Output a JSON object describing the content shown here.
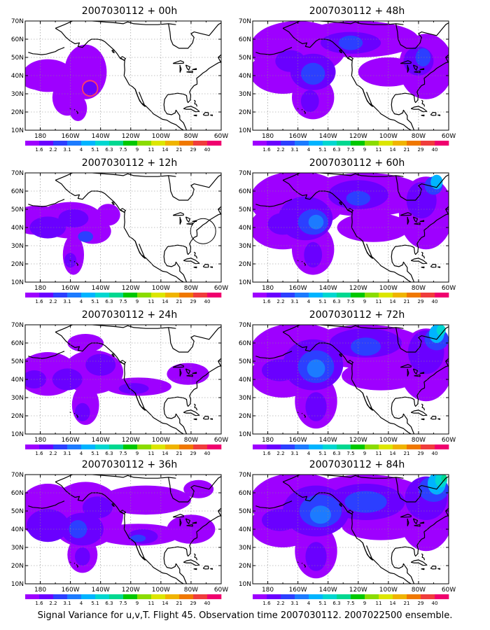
{
  "footer": "Signal Variance for u,v,T. Flight 45. Observation time 2007030112. 2007022500 ensemble.",
  "lat_labels": [
    "70N",
    "60N",
    "50N",
    "40N",
    "30N",
    "20N",
    "10N"
  ],
  "lon_labels": [
    "180",
    "160W",
    "140W",
    "120W",
    "100W",
    "80W",
    "60W"
  ],
  "colorbar": {
    "labels": [
      "1.6",
      "2.2",
      "3.1",
      "4",
      "5.1",
      "6.3",
      "7.5",
      "9",
      "11",
      "14",
      "21",
      "29",
      "40"
    ],
    "colors": [
      "#9e00ff",
      "#6a00ff",
      "#2c3fff",
      "#1c7bff",
      "#00b4ff",
      "#00d7d0",
      "#00d890",
      "#00c800",
      "#8adc00",
      "#dce600",
      "#f0b400",
      "#f07800",
      "#f03c3c",
      "#f0006e"
    ]
  },
  "panels": [
    {
      "title": "2007030112 + 00h",
      "intensity": 0
    },
    {
      "title": "2007030112 + 12h",
      "intensity": 1
    },
    {
      "title": "2007030112 + 24h",
      "intensity": 2
    },
    {
      "title": "2007030112 + 36h",
      "intensity": 3
    },
    {
      "title": "2007030112 + 48h",
      "intensity": 4
    },
    {
      "title": "2007030112 + 60h",
      "intensity": 5
    },
    {
      "title": "2007030112 + 72h",
      "intensity": 6
    },
    {
      "title": "2007030112 + 84h",
      "intensity": 7
    }
  ]
}
